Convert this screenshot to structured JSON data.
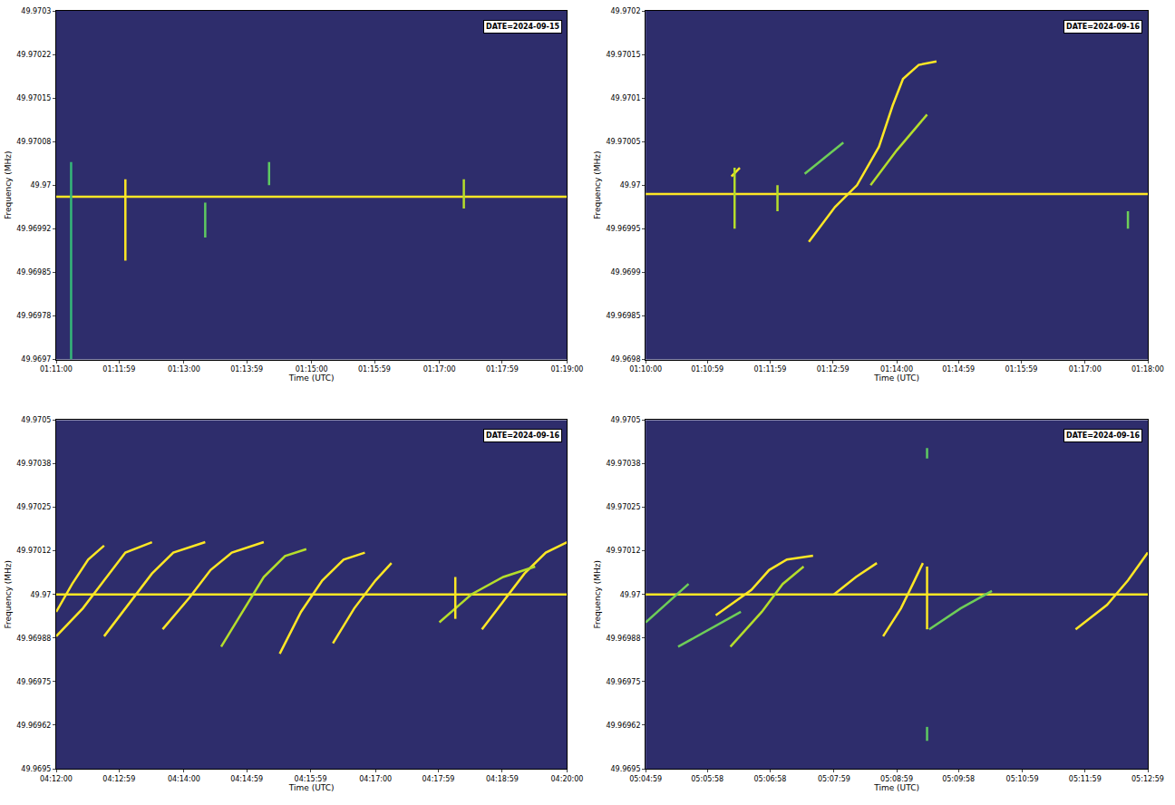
{
  "chart_data": [
    {
      "type": "line",
      "x_label": "Time (UTC)",
      "y_label": "Frequency (MHz)",
      "annotations": [
        "DATE=2024-09-15"
      ],
      "grid": false,
      "xlim": [
        "01:11:00",
        "01:19:00"
      ],
      "xticks": [
        "01:11:00",
        "01:11:59",
        "01:13:00",
        "01:13:59",
        "01:15:00",
        "01:15:59",
        "01:17:00",
        "01:17:59",
        "01:19:00"
      ],
      "ylim": [
        49.9697,
        49.9703
      ],
      "yticks": [
        {
          "value": 49.9697,
          "label": "49.9697"
        },
        {
          "value": 49.969775,
          "label": "49.96978"
        },
        {
          "value": 49.96985,
          "label": "49.96985"
        },
        {
          "value": 49.969925,
          "label": "49.96992"
        },
        {
          "value": 49.97,
          "label": "49.97"
        },
        {
          "value": 49.970075,
          "label": "49.97008"
        },
        {
          "value": 49.97015,
          "label": "49.97015"
        },
        {
          "value": 49.970225,
          "label": "49.97022"
        },
        {
          "value": 49.9703,
          "label": "49.9703"
        }
      ],
      "series": [
        {
          "color": "#fde725",
          "x": [
            "01:11:00",
            "01:19:00"
          ],
          "values": [
            49.96998,
            49.96998
          ]
        },
        {
          "color": "#fde725",
          "x": [
            "01:12:05",
            "01:12:05"
          ],
          "values": [
            49.97001,
            49.96987
          ]
        },
        {
          "color": "#b5de2b",
          "x": [
            "01:17:23",
            "01:17:23"
          ],
          "values": [
            49.97001,
            49.96996
          ]
        },
        {
          "color": "#5ec962",
          "x": [
            "01:13:20",
            "01:13:20"
          ],
          "values": [
            49.96997,
            49.96991
          ]
        },
        {
          "color": "#35b779",
          "x": [
            "01:11:14",
            "01:11:14"
          ],
          "values": [
            49.97004,
            49.9697
          ]
        },
        {
          "color": "#5ec962",
          "x": [
            "01:14:20",
            "01:14:20"
          ],
          "values": [
            49.97004,
            49.97
          ]
        }
      ]
    },
    {
      "type": "line",
      "x_label": "Time (UTC)",
      "y_label": "Frequency (MHz)",
      "annotations": [
        "DATE=2024-09-16"
      ],
      "grid": false,
      "xlim": [
        "01:10:00",
        "01:18:00"
      ],
      "xticks": [
        "01:10:00",
        "01:10:59",
        "01:11:59",
        "01:12:59",
        "01:14:00",
        "01:14:59",
        "01:15:59",
        "01:17:00",
        "01:18:00"
      ],
      "ylim": [
        49.9698,
        49.9702
      ],
      "yticks": [
        49.9698,
        49.96985,
        49.9699,
        49.96995,
        49.97,
        49.97005,
        49.9701,
        49.97015,
        49.9702
      ],
      "series": [
        {
          "color": "#fde725",
          "x": [
            "01:10:00",
            "01:18:00"
          ],
          "values": [
            49.96999,
            49.96999
          ]
        },
        {
          "color": "#fde725",
          "x": [
            "01:12:36",
            "01:13:01",
            "01:13:22",
            "01:13:43",
            "01:13:56",
            "01:14:06",
            "01:14:21",
            "01:14:38"
          ],
          "values": [
            49.969935,
            49.969975,
            49.97,
            49.970044,
            49.970091,
            49.970122,
            49.970138,
            49.970142
          ]
        },
        {
          "color": "#b5de2b",
          "x": [
            "01:13:35",
            "01:14:00",
            "01:14:29"
          ],
          "values": [
            49.97,
            49.97004,
            49.970081
          ]
        },
        {
          "color": "#6ece58",
          "x": [
            "01:12:32",
            "01:13:09"
          ],
          "values": [
            49.970013,
            49.970049
          ]
        },
        {
          "color": "#fde725",
          "x": [
            "01:11:22",
            "01:11:30"
          ],
          "values": [
            49.97001,
            49.97002
          ]
        },
        {
          "color": "#b5de2b",
          "x": [
            "01:11:25",
            "01:11:25"
          ],
          "values": [
            49.97002,
            49.96995
          ]
        },
        {
          "color": "#b5de2b",
          "x": [
            "01:12:06",
            "01:12:06"
          ],
          "values": [
            49.97,
            49.96997
          ]
        },
        {
          "color": "#6ece58",
          "x": [
            "01:17:41",
            "01:17:41"
          ],
          "values": [
            49.96997,
            49.96995
          ]
        }
      ]
    },
    {
      "type": "line",
      "x_label": "Time (UTC)",
      "y_label": "Frequency (MHz)",
      "annotations": [
        "DATE=2024-09-16"
      ],
      "grid": false,
      "xlim": [
        "04:12:00",
        "04:20:00"
      ],
      "xticks": [
        "04:12:00",
        "04:12:59",
        "04:14:00",
        "04:14:59",
        "04:15:59",
        "04:17:00",
        "04:17:59",
        "04:18:59",
        "04:20:00"
      ],
      "ylim": [
        49.9695,
        49.9705
      ],
      "yticks": [
        {
          "value": 49.9695,
          "label": "49.9695"
        },
        {
          "value": 49.969625,
          "label": "49.96962"
        },
        {
          "value": 49.96975,
          "label": "49.96975"
        },
        {
          "value": 49.969875,
          "label": "49.96988"
        },
        {
          "value": 49.97,
          "label": "49.97"
        },
        {
          "value": 49.970125,
          "label": "49.97012"
        },
        {
          "value": 49.97025,
          "label": "49.97025"
        },
        {
          "value": 49.970375,
          "label": "49.97038"
        },
        {
          "value": 49.9705,
          "label": "49.9705"
        }
      ],
      "series": [
        {
          "color": "#fde725",
          "x": [
            "04:12:00",
            "04:20:00"
          ],
          "values": [
            49.97,
            49.97
          ]
        },
        {
          "color": "#fde725",
          "x": [
            "04:12:00",
            "04:12:15",
            "04:12:30",
            "04:12:45"
          ],
          "values": [
            49.96995,
            49.97003,
            49.9701,
            49.97014
          ]
        },
        {
          "color": "#fde725",
          "x": [
            "04:12:00",
            "04:12:25",
            "04:12:45",
            "04:13:05",
            "04:13:30"
          ],
          "values": [
            49.96988,
            49.96996,
            49.97004,
            49.97012,
            49.97015
          ]
        },
        {
          "color": "#fde725",
          "x": [
            "04:12:45",
            "04:13:10",
            "04:13:30",
            "04:13:50",
            "04:14:20"
          ],
          "values": [
            49.96988,
            49.96998,
            49.97006,
            49.97012,
            49.97015
          ]
        },
        {
          "color": "#fde725",
          "x": [
            "04:13:40",
            "04:14:05",
            "04:14:25",
            "04:14:45",
            "04:15:15"
          ],
          "values": [
            49.9699,
            49.96999,
            49.97007,
            49.97012,
            49.97015
          ]
        },
        {
          "color": "#b5de2b",
          "x": [
            "04:14:35",
            "04:14:55",
            "04:15:15",
            "04:15:35",
            "04:15:55"
          ],
          "values": [
            49.96985,
            49.96995,
            49.97005,
            49.97011,
            49.97013
          ]
        },
        {
          "color": "#fde725",
          "x": [
            "04:15:30",
            "04:15:50",
            "04:16:10",
            "04:16:30",
            "04:16:50"
          ],
          "values": [
            49.96983,
            49.96995,
            49.97004,
            49.9701,
            49.97012
          ]
        },
        {
          "color": "#fde725",
          "x": [
            "04:16:20",
            "04:16:40",
            "04:17:00",
            "04:17:15"
          ],
          "values": [
            49.96986,
            49.96996,
            49.97004,
            49.97009
          ]
        },
        {
          "color": "#fde725",
          "x": [
            "04:18:40",
            "04:19:00",
            "04:19:20",
            "04:19:40",
            "04:20:00"
          ],
          "values": [
            49.9699,
            49.96998,
            49.97006,
            49.97012,
            49.97015
          ]
        },
        {
          "color": "#b5de2b",
          "x": [
            "04:18:00",
            "04:18:30",
            "04:19:00",
            "04:19:30"
          ],
          "values": [
            49.96992,
            49.97,
            49.97005,
            49.97008
          ]
        },
        {
          "color": "#fde725",
          "x": [
            "04:18:15",
            "04:18:15"
          ],
          "values": [
            49.97005,
            49.96993
          ]
        }
      ]
    },
    {
      "type": "line",
      "x_label": "Time (UTC)",
      "y_label": "Frequency (MHz)",
      "annotations": [
        "DATE=2024-09-16"
      ],
      "grid": false,
      "xlim": [
        "05:04:59",
        "05:12:59"
      ],
      "xticks": [
        "05:04:59",
        "05:05:58",
        "05:06:58",
        "05:07:59",
        "05:08:59",
        "05:09:58",
        "05:10:59",
        "05:11:59",
        "05:12:59"
      ],
      "ylim": [
        49.9695,
        49.9705
      ],
      "yticks": [
        {
          "value": 49.9695,
          "label": "49.9695"
        },
        {
          "value": 49.969625,
          "label": "49.96962"
        },
        {
          "value": 49.96975,
          "label": "49.96975"
        },
        {
          "value": 49.969875,
          "label": "49.96988"
        },
        {
          "value": 49.97,
          "label": "49.97"
        },
        {
          "value": 49.970125,
          "label": "49.97012"
        },
        {
          "value": 49.97025,
          "label": "49.97025"
        },
        {
          "value": 49.970375,
          "label": "49.97038"
        },
        {
          "value": 49.9705,
          "label": "49.9705"
        }
      ],
      "series": [
        {
          "color": "#fde725",
          "x": [
            "05:04:59",
            "05:12:59"
          ],
          "values": [
            49.97,
            49.97
          ]
        },
        {
          "color": "#6ece58",
          "x": [
            "05:04:59",
            "05:05:40"
          ],
          "values": [
            49.96992,
            49.97003
          ]
        },
        {
          "color": "#fde725",
          "x": [
            "05:06:06",
            "05:06:40",
            "05:06:57",
            "05:07:14",
            "05:07:39"
          ],
          "values": [
            49.96994,
            49.970013,
            49.97007,
            49.9701,
            49.970111
          ]
        },
        {
          "color": "#b5de2b",
          "x": [
            "05:06:20",
            "05:06:50",
            "05:07:10",
            "05:07:30"
          ],
          "values": [
            49.96985,
            49.96995,
            49.97003,
            49.97008
          ]
        },
        {
          "color": "#6ece58",
          "x": [
            "05:05:30",
            "05:06:30"
          ],
          "values": [
            49.96985,
            49.96995
          ]
        },
        {
          "color": "#fde725",
          "x": [
            "05:08:46",
            "05:09:03",
            "05:09:16",
            "05:09:24"
          ],
          "values": [
            49.96988,
            49.96996,
            49.97004,
            49.97009
          ]
        },
        {
          "color": "#fde725",
          "x": [
            "05:07:59",
            "05:08:20",
            "05:08:40"
          ],
          "values": [
            49.97,
            49.97005,
            49.97009
          ]
        },
        {
          "color": "#6ece58",
          "x": [
            "05:09:30",
            "05:10:00",
            "05:10:30"
          ],
          "values": [
            49.9699,
            49.96996,
            49.97001
          ]
        },
        {
          "color": "#fde725",
          "x": [
            "05:11:50",
            "05:12:20",
            "05:12:40",
            "05:12:59"
          ],
          "values": [
            49.9699,
            49.96997,
            49.97004,
            49.97012
          ]
        },
        {
          "color": "#fde725",
          "x": [
            "05:09:28",
            "05:09:28"
          ],
          "values": [
            49.97008,
            49.9699
          ]
        },
        {
          "color": "#5ec962",
          "x": [
            "05:09:28",
            "05:09:28"
          ],
          "values": [
            49.97042,
            49.97039
          ]
        },
        {
          "color": "#5ec962",
          "x": [
            "05:09:28",
            "05:09:28"
          ],
          "values": [
            49.96962,
            49.96958
          ]
        }
      ]
    }
  ]
}
